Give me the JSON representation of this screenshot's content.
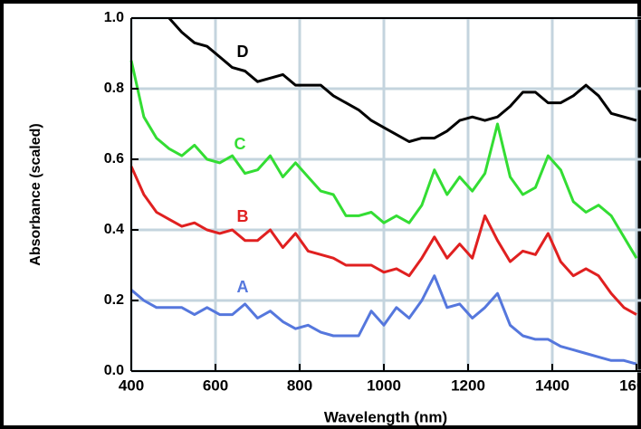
{
  "chart_data": {
    "type": "line",
    "x_label": "Wavelength (nm)",
    "y_label": "Absorbance (scaled)",
    "x": [
      400,
      430,
      460,
      490,
      520,
      550,
      580,
      610,
      640,
      670,
      700,
      730,
      760,
      790,
      820,
      850,
      880,
      910,
      940,
      970,
      1000,
      1030,
      1060,
      1090,
      1120,
      1150,
      1180,
      1210,
      1240,
      1270,
      1300,
      1330,
      1360,
      1390,
      1420,
      1450,
      1480,
      1510,
      1540,
      1570,
      1600
    ],
    "series": [
      {
        "name": "A",
        "color": "#5577dd",
        "values": [
          0.23,
          0.2,
          0.18,
          0.18,
          0.18,
          0.16,
          0.18,
          0.16,
          0.16,
          0.19,
          0.15,
          0.17,
          0.14,
          0.12,
          0.13,
          0.11,
          0.1,
          0.1,
          0.1,
          0.17,
          0.13,
          0.18,
          0.15,
          0.2,
          0.27,
          0.18,
          0.19,
          0.15,
          0.18,
          0.22,
          0.13,
          0.1,
          0.09,
          0.09,
          0.07,
          0.06,
          0.05,
          0.04,
          0.03,
          0.03,
          0.02
        ]
      },
      {
        "name": "B",
        "color": "#e02020",
        "values": [
          0.58,
          0.5,
          0.45,
          0.43,
          0.41,
          0.42,
          0.4,
          0.39,
          0.4,
          0.37,
          0.37,
          0.4,
          0.35,
          0.39,
          0.34,
          0.33,
          0.32,
          0.3,
          0.3,
          0.3,
          0.28,
          0.29,
          0.27,
          0.32,
          0.38,
          0.32,
          0.36,
          0.32,
          0.44,
          0.37,
          0.31,
          0.34,
          0.33,
          0.39,
          0.31,
          0.27,
          0.29,
          0.27,
          0.22,
          0.18,
          0.16
        ]
      },
      {
        "name": "C",
        "color": "#33dd33",
        "values": [
          0.88,
          0.72,
          0.66,
          0.63,
          0.61,
          0.64,
          0.6,
          0.59,
          0.61,
          0.56,
          0.57,
          0.61,
          0.55,
          0.59,
          0.55,
          0.51,
          0.5,
          0.44,
          0.44,
          0.45,
          0.42,
          0.44,
          0.42,
          0.47,
          0.57,
          0.5,
          0.55,
          0.51,
          0.56,
          0.7,
          0.55,
          0.5,
          0.52,
          0.61,
          0.57,
          0.48,
          0.45,
          0.47,
          0.44,
          0.38,
          0.32
        ]
      },
      {
        "name": "D",
        "color": "#000000",
        "values": [
          null,
          null,
          null,
          1.0,
          0.96,
          0.93,
          0.92,
          0.89,
          0.86,
          0.85,
          0.82,
          0.83,
          0.84,
          0.81,
          0.81,
          0.81,
          0.78,
          0.76,
          0.74,
          0.71,
          0.69,
          0.67,
          0.65,
          0.66,
          0.66,
          0.68,
          0.71,
          0.72,
          0.71,
          0.72,
          0.75,
          0.79,
          0.79,
          0.76,
          0.76,
          0.78,
          0.81,
          0.78,
          0.73,
          0.72,
          0.71
        ]
      }
    ],
    "xlim": [
      400,
      1610
    ],
    "ylim": [
      0,
      1
    ],
    "xticks": [
      400,
      600,
      800,
      1000,
      1200,
      1400,
      1600
    ],
    "yticks": [
      {
        "value": 0,
        "label": "0.0"
      },
      0.2,
      0.4,
      0.6,
      0.8,
      {
        "value": 1,
        "label": "1.0"
      }
    ],
    "grid": true
  }
}
